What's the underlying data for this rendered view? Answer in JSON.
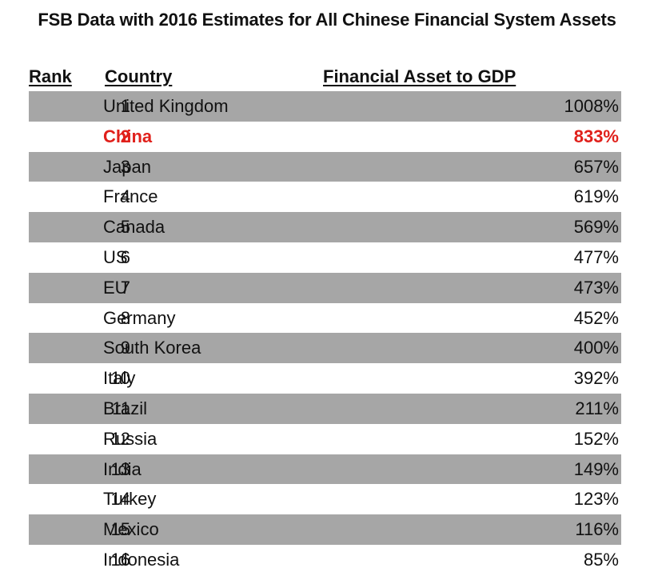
{
  "chart_data": {
    "type": "table",
    "title": "FSB Data with 2016 Estimates for All Chinese Financial System Assets",
    "columns": [
      "Rank",
      "Country",
      "Financial Asset to GDP"
    ],
    "rows": [
      {
        "rank": "1",
        "country": "United Kingdom",
        "value": "1008%"
      },
      {
        "rank": "2",
        "country": "China",
        "value": "833%",
        "highlight": true
      },
      {
        "rank": "3",
        "country": "Japan",
        "value": "657%"
      },
      {
        "rank": "4",
        "country": "France",
        "value": "619%"
      },
      {
        "rank": "5",
        "country": "Canada",
        "value": "569%"
      },
      {
        "rank": "6",
        "country": "US",
        "value": "477%"
      },
      {
        "rank": "7",
        "country": "EU",
        "value": "473%"
      },
      {
        "rank": "8",
        "country": "Germany",
        "value": "452%"
      },
      {
        "rank": "9",
        "country": "South Korea",
        "value": "400%"
      },
      {
        "rank": "10",
        "country": "Italy",
        "value": "392%"
      },
      {
        "rank": "11",
        "country": "Brazil",
        "value": "211%"
      },
      {
        "rank": "12",
        "country": "Russia",
        "value": "152%"
      },
      {
        "rank": "13",
        "country": "India",
        "value": "149%"
      },
      {
        "rank": "14",
        "country": "Turkey",
        "value": "123%"
      },
      {
        "rank": "15",
        "country": "Mexico",
        "value": "116%"
      },
      {
        "rank": "16",
        "country": "Indonesia",
        "value": "85%"
      }
    ],
    "colors": {
      "shaded_row": "#a6a6a6",
      "highlight": "#e0201b"
    }
  }
}
